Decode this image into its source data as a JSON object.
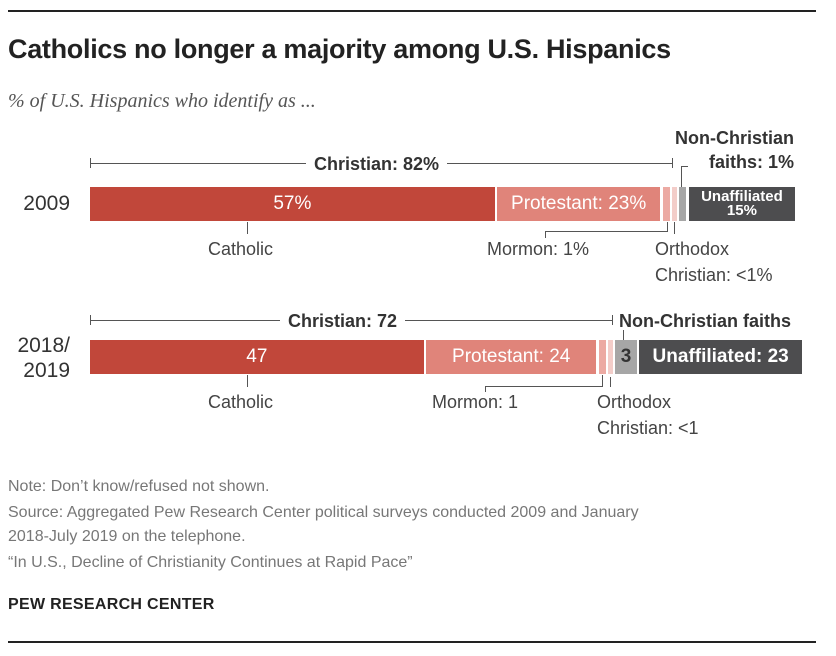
{
  "title": "Catholics no longer a majority among U.S. Hispanics",
  "subtitle": "% of U.S. Hispanics who identify as ...",
  "colors": {
    "catholic": "#c1473a",
    "protestant": "#e0847a",
    "mormon": "#ecaaa3",
    "orthodox": "#f3cdc9",
    "non_christian": "#a6a6a6",
    "unaffiliated": "#4d4d4f"
  },
  "chart_data": {
    "type": "bar",
    "orientation": "horizontal",
    "stacked": true,
    "categories": [
      "2009",
      "2018/2019"
    ],
    "series": [
      {
        "name": "Catholic",
        "values": [
          57,
          47
        ]
      },
      {
        "name": "Protestant",
        "values": [
          23,
          24
        ]
      },
      {
        "name": "Mormon",
        "values": [
          1,
          1
        ]
      },
      {
        "name": "Orthodox Christian",
        "values": [
          "<1",
          "<1"
        ]
      },
      {
        "name": "Non-Christian faiths",
        "values": [
          1,
          3
        ]
      },
      {
        "name": "Unaffiliated",
        "values": [
          15,
          23
        ]
      }
    ],
    "groups": [
      {
        "name": "Christian",
        "values": [
          82,
          72
        ]
      }
    ],
    "labels": {
      "y2009": "2009",
      "y2018a": "2018/",
      "y2018b": "2019",
      "r1": {
        "christian": "Christian: 82%",
        "nonchr_a": "Non-Christian",
        "nonchr_b": "faiths: 1%",
        "catholic_in": "57%",
        "catholic": "Catholic",
        "protestant": "Protestant: 23%",
        "mormon": "Mormon: 1%",
        "orthodox_a": "Orthodox",
        "orthodox_b": "Christian: <1%",
        "unaff_a": "Unaffiliated",
        "unaff_b": "15%"
      },
      "r2": {
        "christian": "Christian: 72",
        "nonchr": "Non-Christian faiths",
        "nonchr_in": "3",
        "catholic_in": "47",
        "catholic": "Catholic",
        "protestant": "Protestant: 24",
        "mormon": "Mormon: 1",
        "orthodox_a": "Orthodox",
        "orthodox_b": "Christian: <1",
        "unaff": "Unaffiliated: 23"
      }
    }
  },
  "notes": {
    "note": "Note: Don’t know/refused not shown.",
    "source_a": "Source: Aggregated Pew Research Center political surveys conducted 2009 and January",
    "source_b": "2018-July 2019 on the telephone.",
    "report": "“In U.S., Decline of Christianity Continues at Rapid Pace”",
    "brand": "PEW RESEARCH CENTER"
  }
}
